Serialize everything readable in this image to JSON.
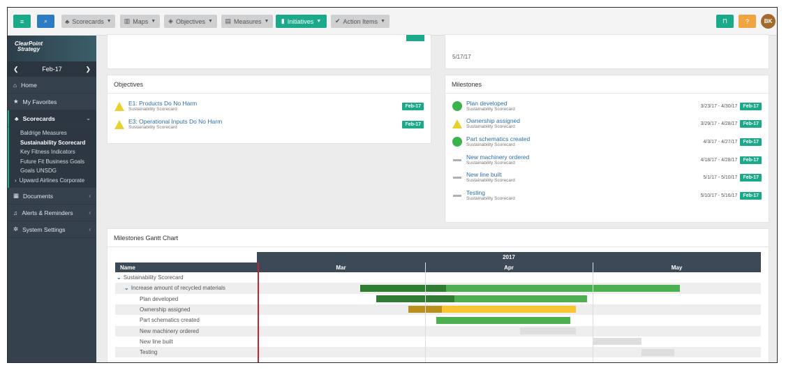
{
  "nav": {
    "menu_icon": "menu-icon",
    "search_icon": "search-icon",
    "items": [
      {
        "label": "Scorecards",
        "icon": "sitemap-icon"
      },
      {
        "label": "Maps",
        "icon": "map-icon"
      },
      {
        "label": "Objectives",
        "icon": "cube-icon"
      },
      {
        "label": "Measures",
        "icon": "chart-icon"
      },
      {
        "label": "Initiatives",
        "icon": "bar-chart-icon"
      },
      {
        "label": "Action Items",
        "icon": "check-icon"
      }
    ],
    "help_label": "?",
    "avatar_initials": "BK"
  },
  "sidebar": {
    "logo_line1": "ClearPoint",
    "logo_line2": "Strategy",
    "period": "Feb-17",
    "home": "Home",
    "favorites": "My Favorites",
    "scorecards": "Scorecards",
    "scorecard_items": [
      "Baldrige Measures",
      "Sustainability Scorecard",
      "Key Fitness Indicators",
      "Future Fit Business Goals",
      "Goals UNSDG",
      "Upward Airlines Corporate"
    ],
    "documents": "Documents",
    "alerts": "Alerts & Reminders",
    "settings": "System Settings"
  },
  "top_panel": {
    "date": "5/17/17"
  },
  "objectives": {
    "title": "Objectives",
    "items": [
      {
        "name": "E1: Products Do No Harm",
        "scorecard": "Sustainability Scorecard",
        "status": "yellow-triangle",
        "period": "Feb-17"
      },
      {
        "name": "E3: Operational Inputs Do No Harm",
        "scorecard": "Sustainability Scorecard",
        "status": "yellow-triangle",
        "period": "Feb-17"
      }
    ]
  },
  "milestones": {
    "title": "Milestones",
    "items": [
      {
        "name": "Plan developed",
        "scorecard": "Sustainability Scorecard",
        "status": "green-circle",
        "dates": "3/23/17 - 4/30/17",
        "period": "Feb-17"
      },
      {
        "name": "Ownership assigned",
        "scorecard": "Sustainability Scorecard",
        "status": "yellow-triangle",
        "dates": "3/29/17 - 4/28/17",
        "period": "Feb-17"
      },
      {
        "name": "Part schematics created",
        "scorecard": "Sustainability Scorecard",
        "status": "green-circle",
        "dates": "4/3/17 - 4/27/17",
        "period": "Feb-17"
      },
      {
        "name": "New machinery ordered",
        "scorecard": "Sustainability Scorecard",
        "status": "gray-dash",
        "dates": "4/18/17 - 4/28/17",
        "period": "Feb-17"
      },
      {
        "name": "New line built",
        "scorecard": "Sustainability Scorecard",
        "status": "gray-dash",
        "dates": "5/1/17 - 5/10/17",
        "period": "Feb-17"
      },
      {
        "name": "Testing",
        "scorecard": "Sustainability Scorecard",
        "status": "gray-dash",
        "dates": "5/10/17 - 5/16/17",
        "period": "Feb-17"
      }
    ]
  },
  "gantt": {
    "title": "Milestones Gantt Chart",
    "year": "2017",
    "name_header": "Name",
    "months": [
      "Mar",
      "Apr",
      "May"
    ],
    "rows": [
      {
        "label": "Sustainability Scorecard",
        "level": 0,
        "expander": true
      },
      {
        "label": "Increase amount of recycled materials",
        "level": 1,
        "expander": true,
        "bar": {
          "start": "2017-03-20",
          "end": "2017-05-17",
          "progress": 0.27,
          "color": "#4cb050",
          "done_color": "#2e7d32"
        }
      },
      {
        "label": "Plan developed",
        "level": 2,
        "bar": {
          "start": "2017-03-23",
          "end": "2017-04-30",
          "progress": 0.37,
          "color": "#4cb050",
          "done_color": "#2e7d32"
        }
      },
      {
        "label": "Ownership assigned",
        "level": 2,
        "bar": {
          "start": "2017-03-29",
          "end": "2017-04-28",
          "progress": 0.2,
          "color": "#f7c531",
          "done_color": "#b8901f"
        }
      },
      {
        "label": "Part schematics created",
        "level": 2,
        "bar": {
          "start": "2017-04-03",
          "end": "2017-04-27",
          "progress": 0,
          "color": "#4cb050",
          "done_color": "#2e7d32"
        }
      },
      {
        "label": "New machinery ordered",
        "level": 2,
        "bar": {
          "start": "2017-04-18",
          "end": "2017-04-28",
          "progress": 0,
          "color": "#dedede",
          "done_color": "#dedede"
        }
      },
      {
        "label": "New line built",
        "level": 2,
        "bar": {
          "start": "2017-05-01",
          "end": "2017-05-10",
          "progress": 0,
          "color": "#dedede",
          "done_color": "#dedede"
        }
      },
      {
        "label": "Testing",
        "level": 2,
        "bar": {
          "start": "2017-05-10",
          "end": "2017-05-16",
          "progress": 0,
          "color": "#dedede",
          "done_color": "#dedede"
        }
      }
    ],
    "today": "2017-03-01"
  }
}
